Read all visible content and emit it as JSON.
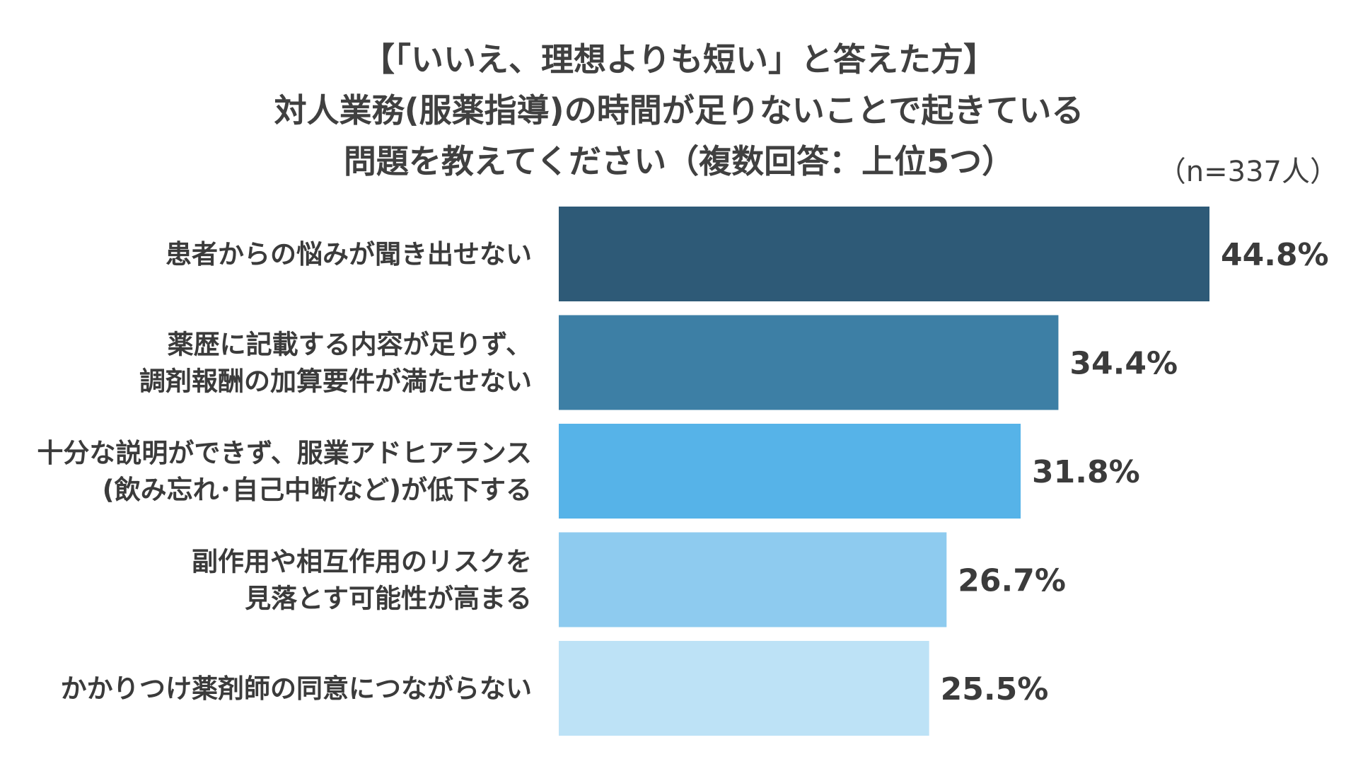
{
  "title_lines": [
    "【「いいえ、理想よりも短い」と答えた方】",
    "対人業務(服薬指導)の時間が足りないことで起きている",
    "問題を教えてください（複数回答：上位5つ）"
  ],
  "sample_note": "（n=337人）",
  "chart_data": {
    "type": "bar",
    "orientation": "horizontal",
    "categories": [
      [
        "患者からの悩みが聞き出せない"
      ],
      [
        "薬歴に記載する内容が足りず、",
        "調剤報酬の加算要件が満たせない"
      ],
      [
        "十分な説明ができず、服業アドヒアランス",
        "(飲み忘れ･自己中断など)が低下する"
      ],
      [
        "副作用や相互作用のリスクを",
        "見落とす可能性が高まる"
      ],
      [
        "かかりつけ薬剤師の同意につながらない"
      ]
    ],
    "values": [
      44.8,
      34.4,
      31.8,
      26.7,
      25.5
    ],
    "value_labels": [
      "44.8%",
      "34.4%",
      "31.8%",
      "26.7%",
      "25.5%"
    ],
    "unit": "%",
    "xlim": [
      0,
      50
    ],
    "grid": false,
    "colors": [
      "#2E5A77",
      "#3D7FA5",
      "#56B3E8",
      "#8ECBEF",
      "#BDE2F6"
    ]
  }
}
